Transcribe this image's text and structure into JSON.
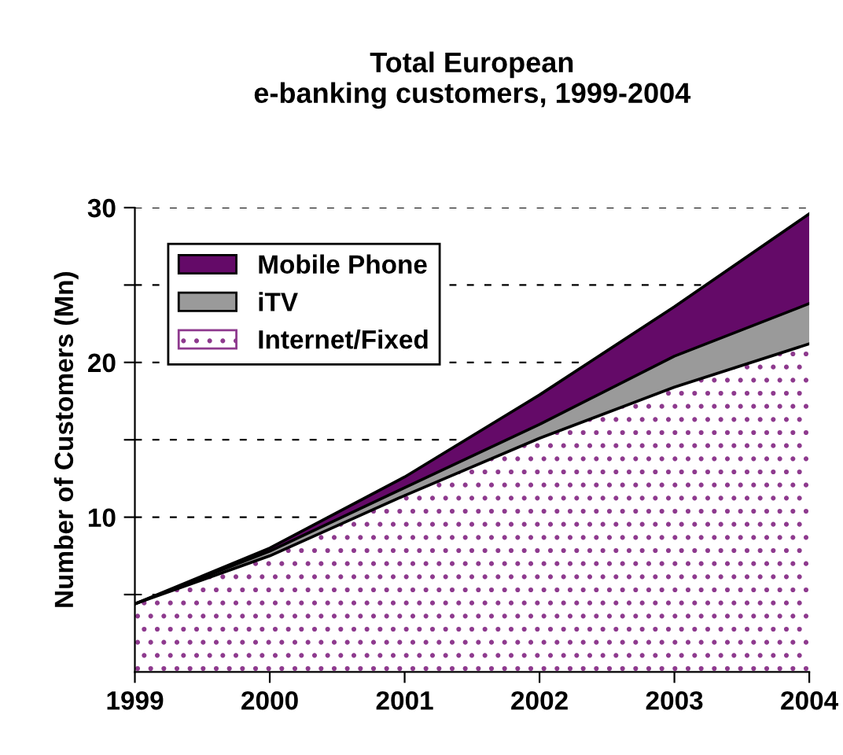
{
  "chart_data": {
    "type": "area",
    "stacked": true,
    "title": "Total European\ne-banking customers, 1999-2004",
    "ylabel": "Number of Customers (Mn)",
    "x": [
      1999,
      2000,
      2001,
      2002,
      2003,
      2004
    ],
    "series": [
      {
        "name": "Internet/Fixed",
        "color": "#8e3a8e",
        "values": [
          4.4,
          7.5,
          11.4,
          15.1,
          18.4,
          21.2
        ]
      },
      {
        "name": "iTV",
        "color": "#9a9a9a",
        "values": [
          0,
          0.3,
          0.5,
          0.9,
          2.0,
          2.6
        ]
      },
      {
        "name": "Mobile Phone",
        "color": "#640a68",
        "values": [
          0,
          0.2,
          0.7,
          1.9,
          3.2,
          5.8
        ]
      }
    ],
    "xlim": [
      1999,
      2004
    ],
    "xticks": [
      1999,
      2000,
      2001,
      2002,
      2003,
      2004
    ],
    "ylim": [
      0,
      30
    ],
    "yticks": [
      {
        "value": 5,
        "label": null
      },
      10,
      {
        "value": 15,
        "label": null
      },
      20,
      {
        "value": 25,
        "label": null
      },
      30
    ],
    "grid": "y",
    "legend": "top left"
  }
}
